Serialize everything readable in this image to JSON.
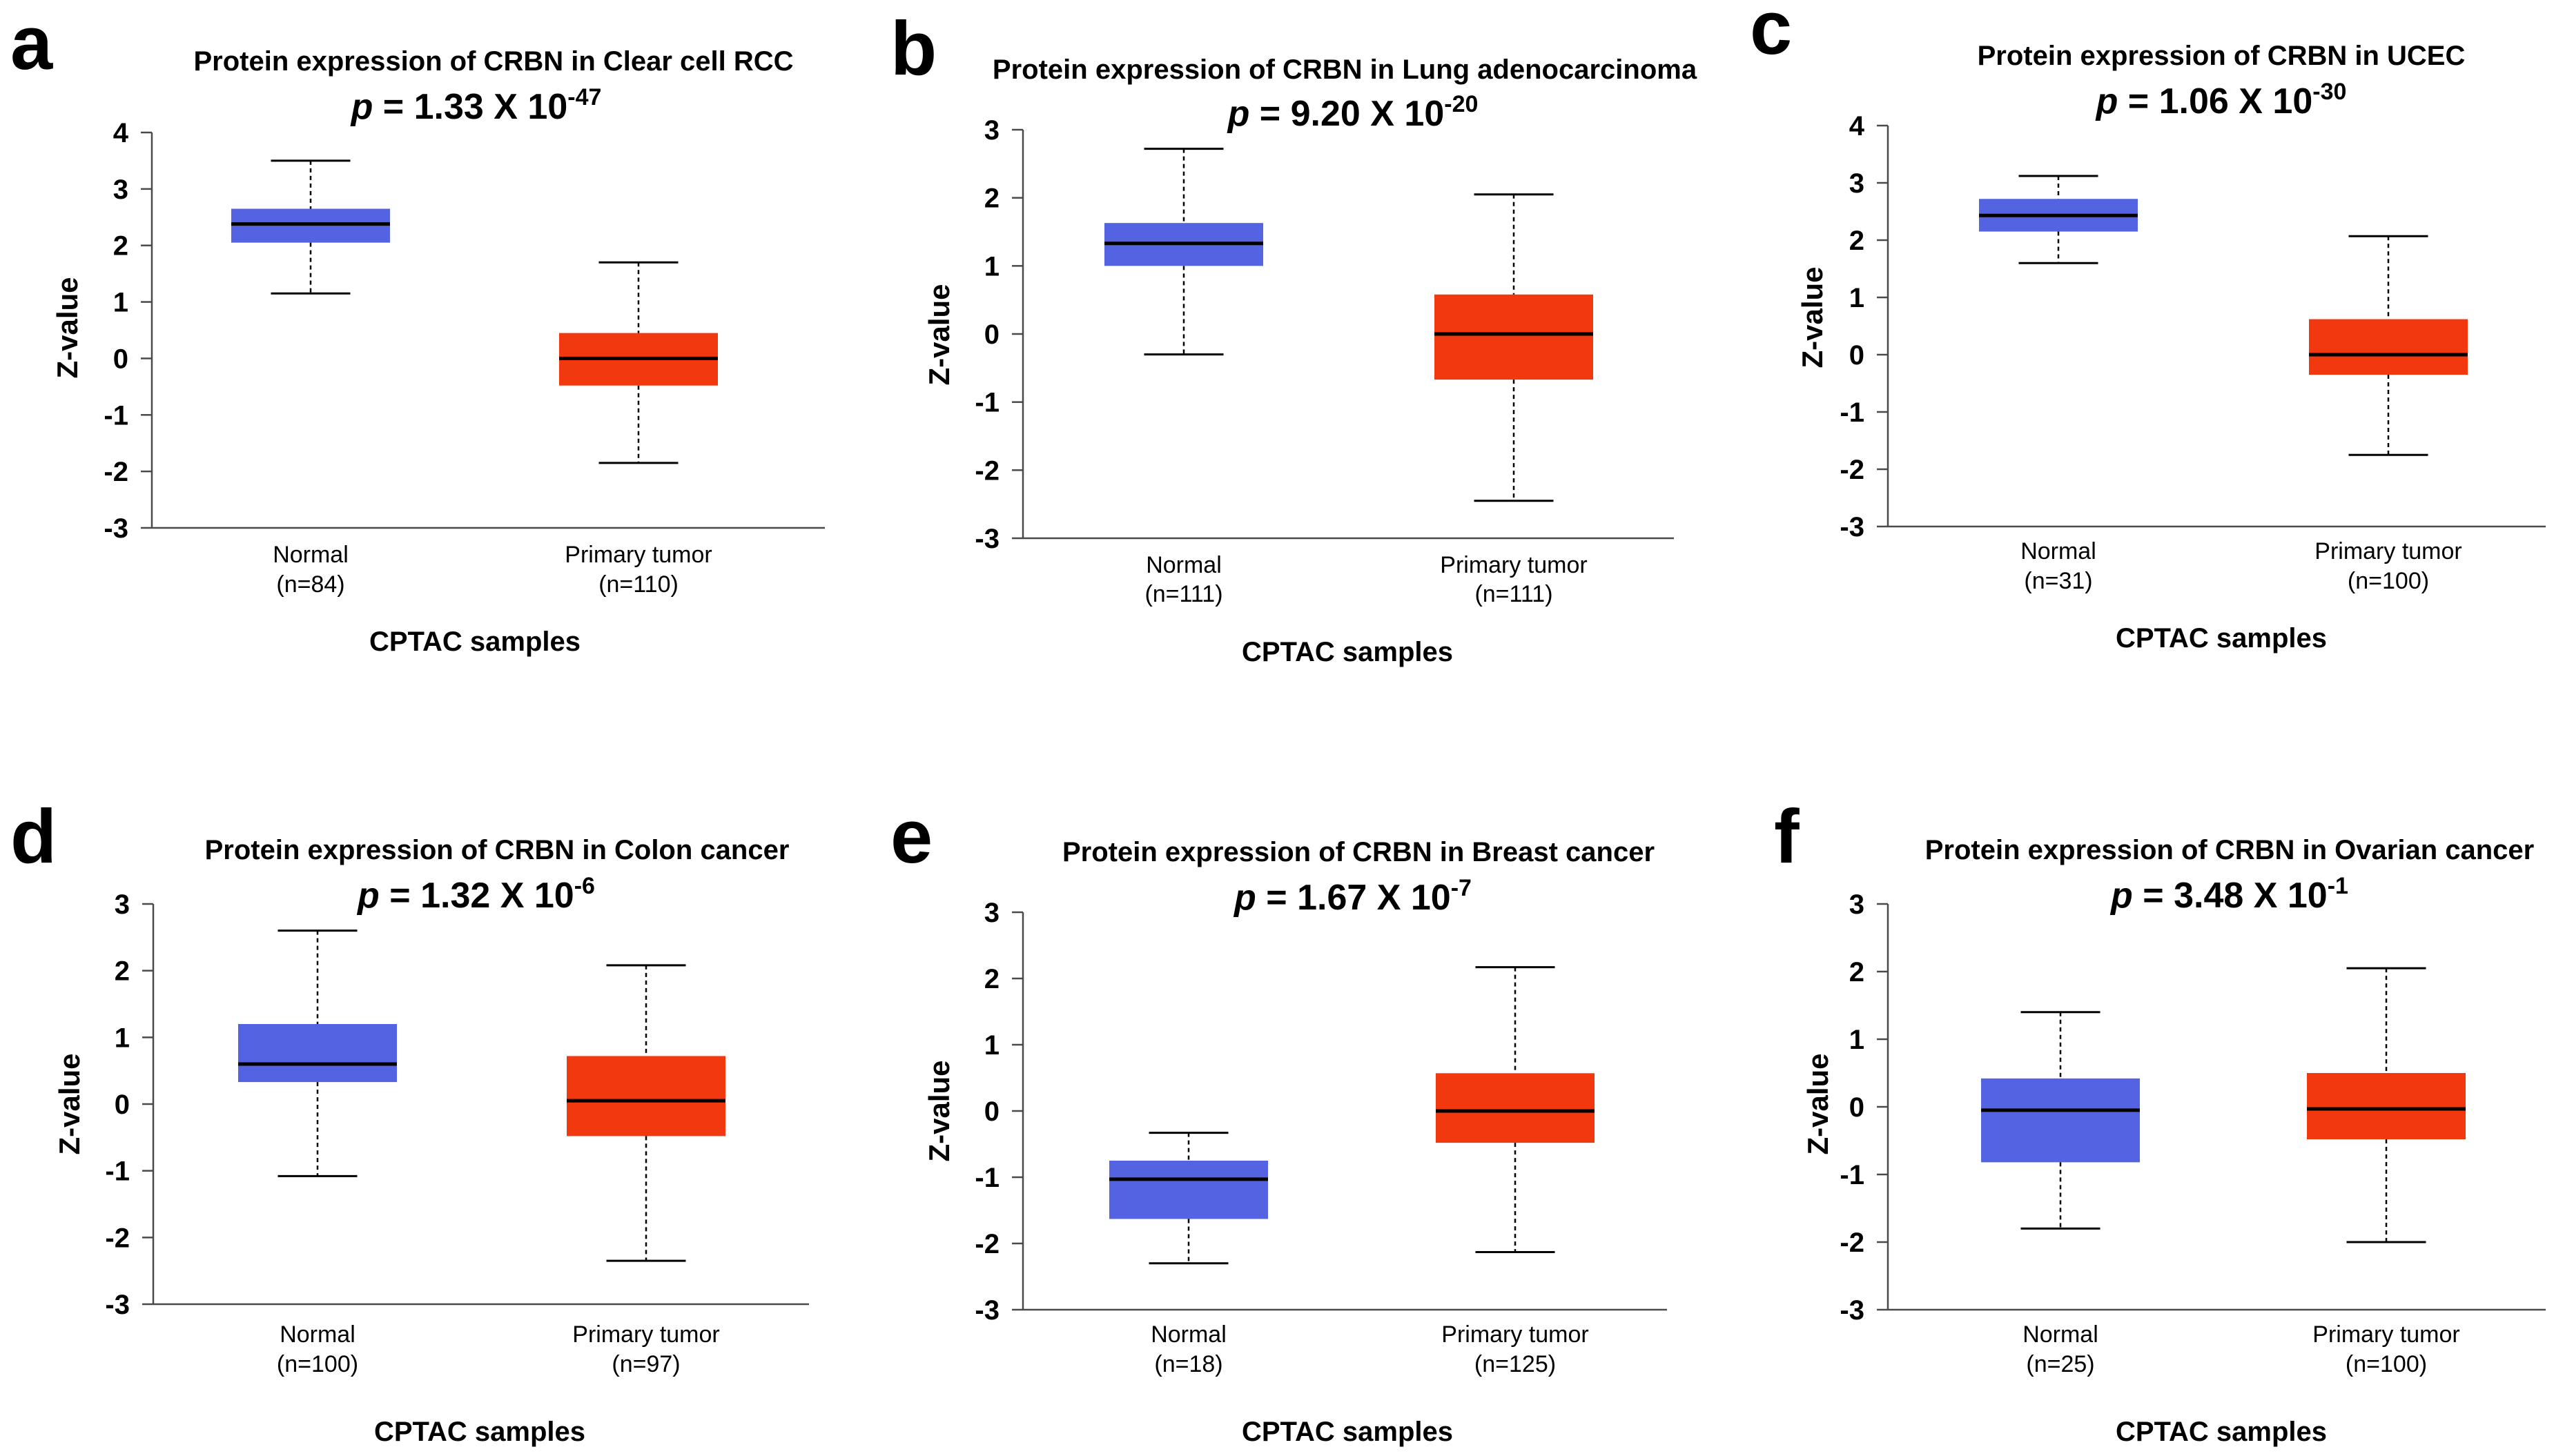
{
  "colors": {
    "normal": "#5463e2",
    "tumor": "#f2380e",
    "axis": "#4a4a4a"
  },
  "chart_data": [
    {
      "panel": "a",
      "type": "box",
      "title": "Protein expression of CRBN in Clear cell RCC",
      "p_label": "p",
      "p_eq": " = ",
      "p_base": "1.33 X 10",
      "p_exp": "-47",
      "ylabel": "Z-value",
      "xlabel": "CPTAC samples",
      "ylim": [
        -3,
        4
      ],
      "yticks": [
        "4",
        "3",
        "2",
        "1",
        "0",
        "-1",
        "-2",
        "-3"
      ],
      "categories": [
        {
          "name": "Normal",
          "n": "(n=84)",
          "color": "normal",
          "min": 1.15,
          "q1": 2.05,
          "median": 2.38,
          "q3": 2.65,
          "max": 3.5
        },
        {
          "name": "Primary tumor",
          "n": "(n=110)",
          "color": "tumor",
          "min": -1.85,
          "q1": -0.48,
          "median": 0.0,
          "q3": 0.45,
          "max": 1.7
        }
      ]
    },
    {
      "panel": "b",
      "type": "box",
      "title": "Protein expression of CRBN in Lung adenocarcinoma",
      "p_label": "p",
      "p_eq": " = ",
      "p_base": "9.20 X 10",
      "p_exp": "-20",
      "ylabel": "Z-value",
      "xlabel": "CPTAC samples",
      "ylim": [
        -3,
        3
      ],
      "yticks": [
        "3",
        "2",
        "1",
        "0",
        "-1",
        "-2",
        "-3"
      ],
      "categories": [
        {
          "name": "Normal",
          "n": "(n=111)",
          "color": "normal",
          "min": -0.3,
          "q1": 1.0,
          "median": 1.33,
          "q3": 1.63,
          "max": 2.72
        },
        {
          "name": "Primary tumor",
          "n": "(n=111)",
          "color": "tumor",
          "min": -2.45,
          "q1": -0.67,
          "median": 0.0,
          "q3": 0.58,
          "max": 2.05
        }
      ]
    },
    {
      "panel": "c",
      "type": "box",
      "title": "Protein expression of CRBN in UCEC",
      "p_label": "p",
      "p_eq": " = ",
      "p_base": "1.06 X 10",
      "p_exp": "-30",
      "ylabel": "Z-value",
      "xlabel": "CPTAC samples",
      "ylim": [
        -3,
        4
      ],
      "yticks": [
        "4",
        "3",
        "2",
        "1",
        "0",
        "-1",
        "-2",
        "-3"
      ],
      "categories": [
        {
          "name": "Normal",
          "n": "(n=31)",
          "color": "normal",
          "min": 1.6,
          "q1": 2.15,
          "median": 2.43,
          "q3": 2.72,
          "max": 3.12
        },
        {
          "name": "Primary tumor",
          "n": "(n=100)",
          "color": "tumor",
          "min": -1.75,
          "q1": -0.35,
          "median": 0.0,
          "q3": 0.62,
          "max": 2.07
        }
      ]
    },
    {
      "panel": "d",
      "type": "box",
      "title": "Protein expression of CRBN in Colon cancer",
      "p_label": "p",
      "p_eq": " = ",
      "p_base": "1.32 X 10",
      "p_exp": "-6",
      "ylabel": "Z-value",
      "xlabel": "CPTAC samples",
      "ylim": [
        -3,
        3
      ],
      "yticks": [
        "3",
        "2",
        "1",
        "0",
        "-1",
        "-2",
        "-3"
      ],
      "categories": [
        {
          "name": "Normal",
          "n": "(n=100)",
          "color": "normal",
          "min": -1.08,
          "q1": 0.33,
          "median": 0.6,
          "q3": 1.2,
          "max": 2.6
        },
        {
          "name": "Primary tumor",
          "n": "(n=97)",
          "color": "tumor",
          "min": -2.35,
          "q1": -0.48,
          "median": 0.05,
          "q3": 0.72,
          "max": 2.08
        }
      ]
    },
    {
      "panel": "e",
      "type": "box",
      "title": "Protein expression of CRBN in Breast cancer",
      "p_label": "p",
      "p_eq": " = ",
      "p_base": "1.67 X 10",
      "p_exp": "-7",
      "ylabel": "Z-value",
      "xlabel": "CPTAC samples",
      "ylim": [
        -3,
        3
      ],
      "yticks": [
        "3",
        "2",
        "1",
        "0",
        "-1",
        "-2",
        "-3"
      ],
      "categories": [
        {
          "name": "Normal",
          "n": "(n=18)",
          "color": "normal",
          "min": -2.3,
          "q1": -1.63,
          "median": -1.03,
          "q3": -0.75,
          "max": -0.33
        },
        {
          "name": "Primary tumor",
          "n": "(n=125)",
          "color": "tumor",
          "min": -2.13,
          "q1": -0.48,
          "median": 0.0,
          "q3": 0.57,
          "max": 2.17
        }
      ]
    },
    {
      "panel": "f",
      "type": "box",
      "title": "Protein expression of CRBN in Ovarian cancer",
      "p_label": "p",
      "p_eq": " = ",
      "p_base": "3.48 X 10",
      "p_exp": "-1",
      "ylabel": "Z-value",
      "xlabel": "CPTAC samples",
      "ylim": [
        -3,
        3
      ],
      "yticks": [
        "3",
        "2",
        "1",
        "0",
        "-1",
        "-2",
        "-3"
      ],
      "categories": [
        {
          "name": "Normal",
          "n": "(n=25)",
          "color": "normal",
          "min": -1.8,
          "q1": -0.82,
          "median": -0.05,
          "q3": 0.42,
          "max": 1.4
        },
        {
          "name": "Primary tumor",
          "n": "(n=100)",
          "color": "tumor",
          "min": -2.0,
          "q1": -0.48,
          "median": -0.03,
          "q3": 0.5,
          "max": 2.05
        }
      ]
    }
  ]
}
